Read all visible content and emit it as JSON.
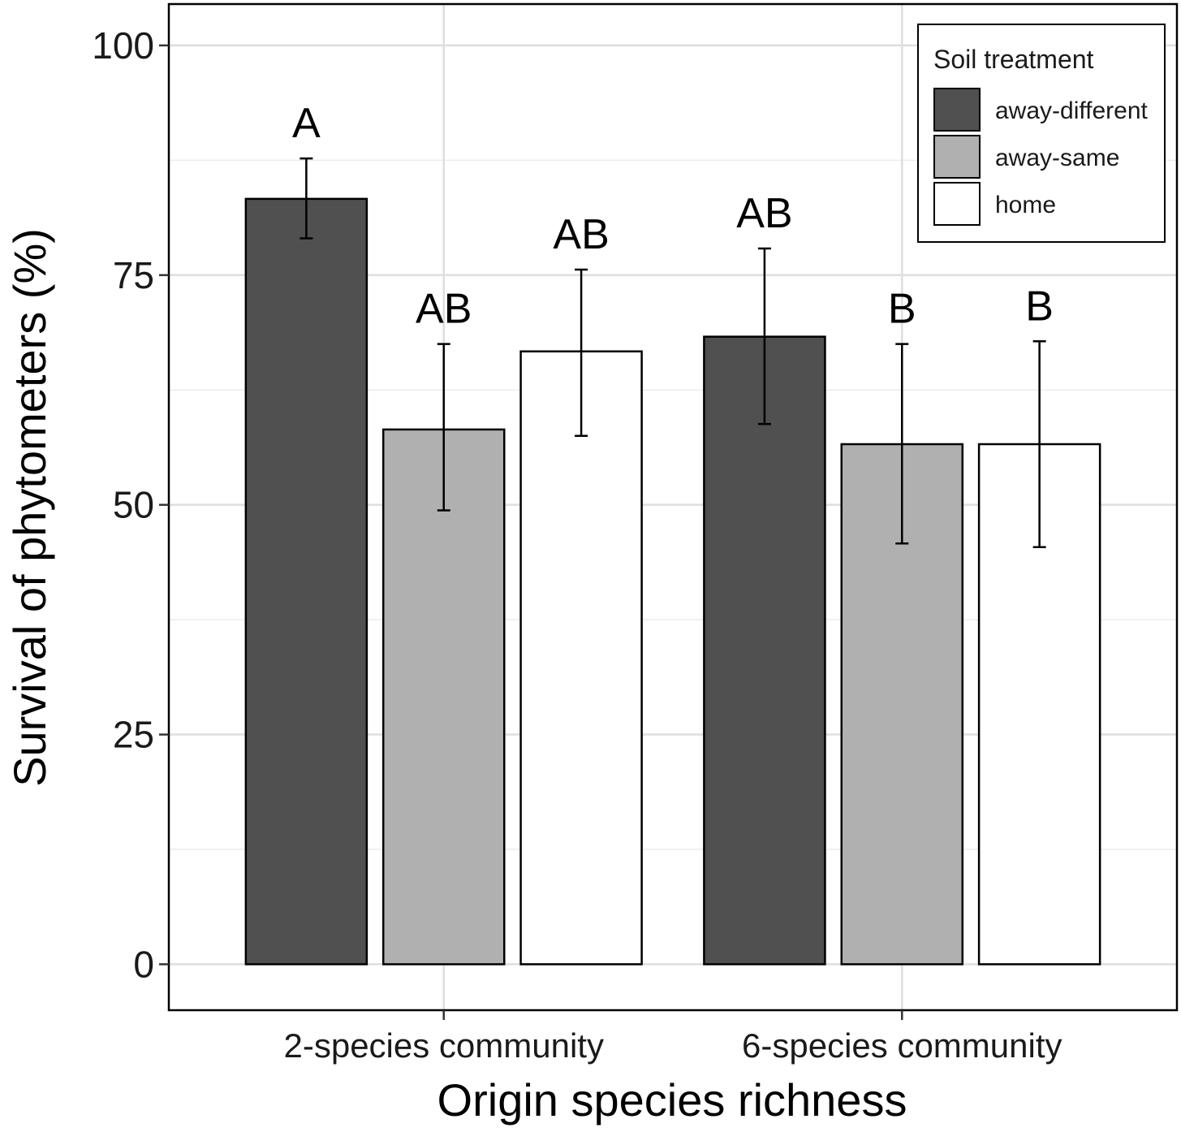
{
  "chart_data": {
    "type": "bar",
    "xlabel": "Origin species richness",
    "ylabel": "Survival of phytometers (%)",
    "categories": [
      "2-species community",
      "6-species community"
    ],
    "ylim": [
      -5,
      104.5
    ],
    "yticks": [
      0,
      25,
      50,
      75,
      100
    ],
    "grid": true,
    "legend": {
      "title": "Soil treatment",
      "position": "top-right"
    },
    "series": [
      {
        "name": "away-different",
        "color": "#505050",
        "values": [
          83.3,
          68.3
        ],
        "err_low": [
          79.0,
          58.8
        ],
        "err_high": [
          87.7,
          77.9
        ],
        "letters": [
          "A",
          "AB"
        ]
      },
      {
        "name": "away-same",
        "color": "#b0b0b0",
        "values": [
          58.2,
          56.6
        ],
        "err_low": [
          49.4,
          45.8
        ],
        "err_high": [
          67.5,
          67.5
        ],
        "letters": [
          "AB",
          "B"
        ]
      },
      {
        "name": "home",
        "color": "#ffffff",
        "values": [
          66.7,
          56.6
        ],
        "err_low": [
          57.5,
          45.4
        ],
        "err_high": [
          75.6,
          67.8
        ],
        "letters": [
          "AB",
          "B"
        ]
      }
    ]
  }
}
